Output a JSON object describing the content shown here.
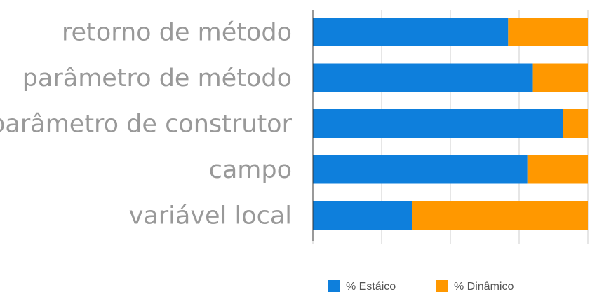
{
  "chart_data": {
    "type": "bar",
    "orientation": "horizontal",
    "stacked": "percent",
    "categories": [
      "retorno de método",
      "parâmetro de método",
      "parâmetro de construtor",
      "campo",
      "variável local"
    ],
    "series": [
      {
        "name": "% Estáico",
        "values": [
          71,
          80,
          91,
          78,
          36
        ]
      },
      {
        "name": "% Dinâmico",
        "values": [
          29,
          20,
          9,
          22,
          64
        ]
      }
    ],
    "xlim": [
      0,
      100
    ],
    "x_ticks": [
      0,
      25,
      50,
      75,
      100
    ],
    "grid": true,
    "legend_position": "bottom",
    "colors": {
      "series": [
        "#0e7fdc",
        "#ff9800"
      ],
      "label": "#999999",
      "axis": "#333333",
      "grid": "#cccccc"
    }
  }
}
